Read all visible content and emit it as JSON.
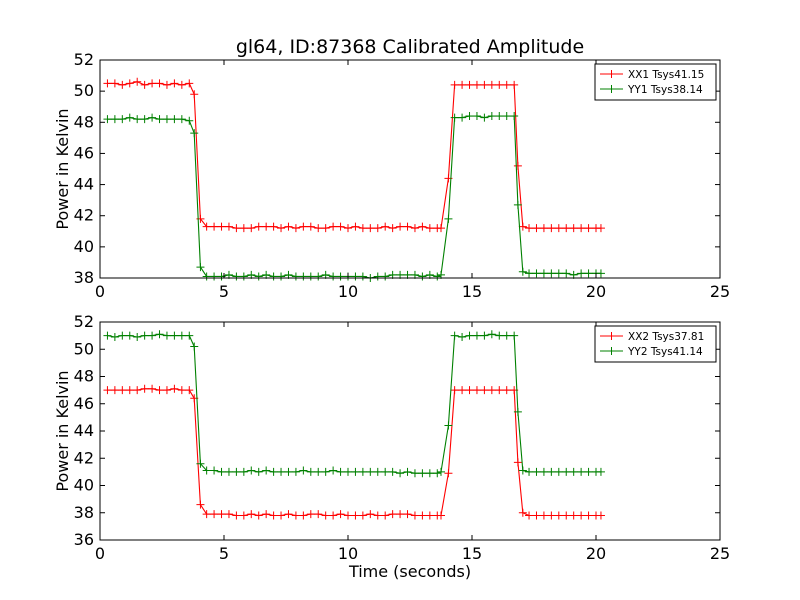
{
  "figure_title": "gl64, ID:87368 Calibrated Amplitude",
  "chart_data": [
    {
      "type": "line",
      "title": "gl64, ID:87368 Calibrated Amplitude",
      "xlabel": "",
      "ylabel": "Power in Kelvin",
      "xlim": [
        0,
        25
      ],
      "ylim": [
        38,
        52
      ],
      "xticks": [
        "0",
        "5",
        "10",
        "15",
        "20",
        "25"
      ],
      "yticks": [
        "38",
        "40",
        "42",
        "44",
        "46",
        "48",
        "50",
        "52"
      ],
      "grid": false,
      "legend": "top-right",
      "x": [
        0.3,
        0.6,
        0.9,
        1.2,
        1.5,
        1.8,
        2.1,
        2.4,
        2.7,
        3.0,
        3.3,
        3.6,
        3.8,
        4.05,
        4.3,
        4.6,
        4.9,
        5.2,
        5.5,
        5.8,
        6.1,
        6.4,
        6.7,
        7.0,
        7.3,
        7.6,
        7.9,
        8.2,
        8.5,
        8.8,
        9.1,
        9.4,
        9.7,
        10.0,
        10.3,
        10.6,
        10.9,
        11.2,
        11.5,
        11.8,
        12.1,
        12.4,
        12.7,
        13.0,
        13.3,
        13.6,
        13.75,
        14.05,
        14.3,
        14.6,
        14.9,
        15.2,
        15.5,
        15.8,
        16.1,
        16.4,
        16.7,
        16.85,
        17.05,
        17.3,
        17.6,
        17.9,
        18.2,
        18.5,
        18.8,
        19.1,
        19.4,
        19.7,
        20.0,
        20.2
      ],
      "series": [
        {
          "name": "XX1 Tsys41.15",
          "color": "#ff0000",
          "values": [
            50.5,
            50.5,
            50.4,
            50.5,
            50.6,
            50.4,
            50.5,
            50.5,
            50.4,
            50.5,
            50.4,
            50.5,
            49.8,
            41.8,
            41.3,
            41.3,
            41.3,
            41.3,
            41.2,
            41.2,
            41.2,
            41.3,
            41.3,
            41.3,
            41.2,
            41.3,
            41.2,
            41.3,
            41.3,
            41.2,
            41.2,
            41.3,
            41.3,
            41.2,
            41.3,
            41.2,
            41.2,
            41.2,
            41.3,
            41.2,
            41.3,
            41.3,
            41.2,
            41.3,
            41.2,
            41.2,
            41.2,
            44.4,
            50.4,
            50.4,
            50.4,
            50.4,
            50.4,
            50.4,
            50.4,
            50.4,
            50.4,
            45.2,
            41.3,
            41.2,
            41.2,
            41.2,
            41.2,
            41.2,
            41.2,
            41.2,
            41.2,
            41.2,
            41.2,
            41.2
          ]
        },
        {
          "name": "YY1 Tsys38.14",
          "color": "#008000",
          "values": [
            48.2,
            48.2,
            48.2,
            48.3,
            48.2,
            48.2,
            48.3,
            48.2,
            48.2,
            48.2,
            48.2,
            48.1,
            47.3,
            38.7,
            38.1,
            38.1,
            38.1,
            38.2,
            38.1,
            38.1,
            38.2,
            38.1,
            38.2,
            38.1,
            38.1,
            38.2,
            38.1,
            38.1,
            38.1,
            38.1,
            38.2,
            38.1,
            38.1,
            38.1,
            38.1,
            38.1,
            38.0,
            38.1,
            38.1,
            38.2,
            38.2,
            38.2,
            38.2,
            38.1,
            38.2,
            38.1,
            38.2,
            41.8,
            48.3,
            48.3,
            48.4,
            48.4,
            48.3,
            48.4,
            48.4,
            48.4,
            48.4,
            42.7,
            38.4,
            38.3,
            38.3,
            38.3,
            38.3,
            38.3,
            38.3,
            38.2,
            38.3,
            38.3,
            38.3,
            38.3
          ]
        }
      ]
    },
    {
      "type": "line",
      "title": "",
      "xlabel": "Time (seconds)",
      "ylabel": "Power in Kelvin",
      "xlim": [
        0,
        25
      ],
      "ylim": [
        36,
        52
      ],
      "xticks": [
        "0",
        "5",
        "10",
        "15",
        "20",
        "25"
      ],
      "yticks": [
        "36",
        "38",
        "40",
        "42",
        "44",
        "46",
        "48",
        "50",
        "52"
      ],
      "grid": false,
      "legend": "top-right",
      "x": [
        0.3,
        0.6,
        0.9,
        1.2,
        1.5,
        1.8,
        2.1,
        2.4,
        2.7,
        3.0,
        3.3,
        3.6,
        3.8,
        4.05,
        4.3,
        4.6,
        4.9,
        5.2,
        5.5,
        5.8,
        6.1,
        6.4,
        6.7,
        7.0,
        7.3,
        7.6,
        7.9,
        8.2,
        8.5,
        8.8,
        9.1,
        9.4,
        9.7,
        10.0,
        10.3,
        10.6,
        10.9,
        11.2,
        11.5,
        11.8,
        12.1,
        12.4,
        12.7,
        13.0,
        13.3,
        13.6,
        13.75,
        14.05,
        14.3,
        14.6,
        14.9,
        15.2,
        15.5,
        15.8,
        16.1,
        16.4,
        16.7,
        16.85,
        17.05,
        17.3,
        17.6,
        17.9,
        18.2,
        18.5,
        18.8,
        19.1,
        19.4,
        19.7,
        20.0,
        20.2
      ],
      "series": [
        {
          "name": "XX2 Tsys37.81",
          "color": "#ff0000",
          "values": [
            47.0,
            47.0,
            47.0,
            47.0,
            47.0,
            47.1,
            47.1,
            47.0,
            47.0,
            47.1,
            47.0,
            47.0,
            46.4,
            38.6,
            37.9,
            37.9,
            37.9,
            37.9,
            37.8,
            37.8,
            37.9,
            37.8,
            37.9,
            37.8,
            37.8,
            37.9,
            37.8,
            37.8,
            37.9,
            37.9,
            37.8,
            37.8,
            37.9,
            37.8,
            37.8,
            37.8,
            37.9,
            37.8,
            37.8,
            37.9,
            37.9,
            37.9,
            37.8,
            37.8,
            37.8,
            37.8,
            37.8,
            40.9,
            47.0,
            47.0,
            47.0,
            47.0,
            47.0,
            47.0,
            47.0,
            47.0,
            47.0,
            41.7,
            38.0,
            37.8,
            37.8,
            37.8,
            37.8,
            37.8,
            37.8,
            37.8,
            37.8,
            37.8,
            37.8,
            37.8
          ]
        },
        {
          "name": "YY2 Tsys41.14",
          "color": "#008000",
          "values": [
            51.0,
            50.9,
            51.0,
            51.0,
            50.9,
            51.0,
            51.0,
            51.1,
            51.0,
            51.0,
            51.0,
            51.0,
            50.2,
            41.6,
            41.1,
            41.1,
            41.0,
            41.0,
            41.0,
            41.0,
            41.1,
            41.0,
            41.1,
            41.0,
            41.0,
            41.0,
            41.0,
            41.1,
            41.0,
            41.0,
            41.0,
            41.1,
            41.0,
            41.0,
            41.0,
            41.0,
            41.0,
            41.0,
            41.0,
            41.0,
            40.9,
            41.0,
            40.9,
            40.9,
            40.9,
            40.9,
            41.0,
            44.4,
            51.0,
            50.9,
            51.0,
            51.0,
            51.0,
            51.1,
            51.0,
            51.0,
            51.0,
            45.4,
            41.1,
            41.0,
            41.0,
            41.0,
            41.0,
            41.0,
            41.0,
            41.0,
            41.0,
            41.0,
            41.0,
            41.0
          ]
        }
      ]
    }
  ]
}
